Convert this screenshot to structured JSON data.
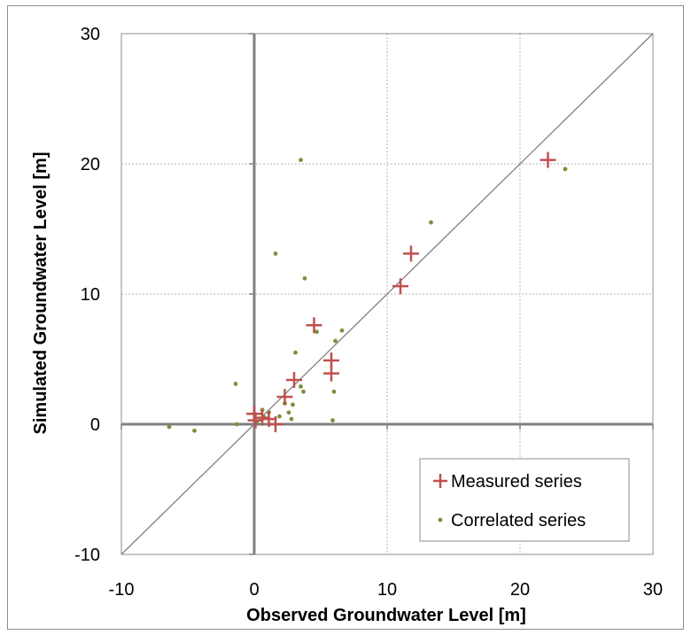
{
  "chart_data": {
    "type": "scatter",
    "title": "",
    "xlabel": "Observed Groundwater Level [m]",
    "ylabel": "Simulated Groundwater Level [m]",
    "xlim": [
      -10,
      30
    ],
    "ylim": [
      -10,
      30
    ],
    "xticks": [
      -10,
      0,
      10,
      20,
      30
    ],
    "yticks": [
      -10,
      0,
      10,
      20,
      30
    ],
    "x_tick_labels": [
      "-10",
      "0",
      "10",
      "20",
      "30"
    ],
    "y_tick_labels": [
      "-10",
      "0",
      "10",
      "20",
      "30"
    ],
    "grid": true,
    "reference_line": "1:1",
    "legend_position": "bottom-right",
    "colors": {
      "measured": "#c0504d",
      "correlated": "#77933c",
      "grid": "#b3b3b3",
      "zero_axis": "#7f7f7f",
      "diagonal": "#808080"
    },
    "series": [
      {
        "name": "Measured series",
        "marker": "plus",
        "points": [
          [
            0.0,
            0.8
          ],
          [
            0.1,
            0.3
          ],
          [
            0.6,
            0.5
          ],
          [
            1.1,
            0.4
          ],
          [
            1.6,
            0.0
          ],
          [
            2.3,
            2.1
          ],
          [
            3.0,
            3.4
          ],
          [
            4.5,
            7.6
          ],
          [
            5.8,
            3.9
          ],
          [
            5.8,
            4.9
          ],
          [
            11.0,
            10.6
          ],
          [
            11.8,
            13.1
          ],
          [
            22.1,
            20.3
          ]
        ]
      },
      {
        "name": "Correlated series",
        "marker": "dot",
        "points": [
          [
            -6.4,
            -0.2
          ],
          [
            -4.5,
            -0.5
          ],
          [
            -1.4,
            3.1
          ],
          [
            -1.3,
            0.0
          ],
          [
            0.2,
            0.2
          ],
          [
            0.6,
            1.1
          ],
          [
            0.7,
            0.6
          ],
          [
            1.1,
            0.9
          ],
          [
            1.6,
            13.1
          ],
          [
            1.9,
            0.6
          ],
          [
            2.3,
            1.6
          ],
          [
            2.6,
            0.9
          ],
          [
            2.8,
            0.4
          ],
          [
            2.9,
            1.5
          ],
          [
            3.1,
            5.5
          ],
          [
            3.5,
            20.3
          ],
          [
            3.5,
            2.9
          ],
          [
            3.7,
            2.5
          ],
          [
            3.8,
            11.2
          ],
          [
            4.7,
            7.1
          ],
          [
            5.9,
            0.3
          ],
          [
            6.0,
            2.5
          ],
          [
            6.1,
            6.4
          ],
          [
            6.6,
            7.2
          ],
          [
            13.3,
            15.5
          ],
          [
            23.4,
            19.6
          ]
        ]
      }
    ]
  }
}
